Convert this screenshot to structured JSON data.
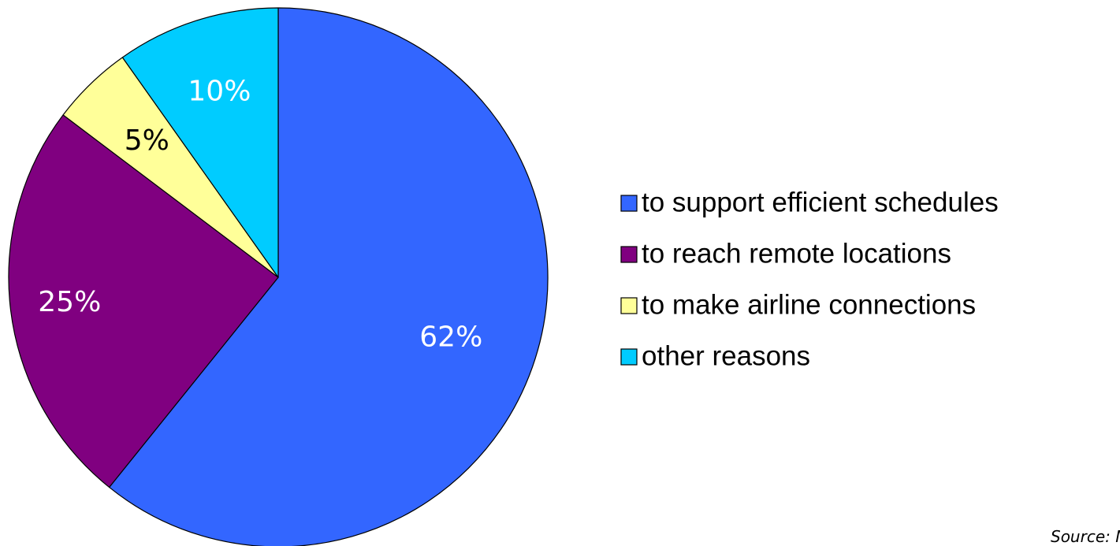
{
  "chart_data": {
    "type": "pie",
    "title": "",
    "slices": [
      {
        "label": "to support efficient schedules",
        "value": 62,
        "value_label": "62%",
        "color": "#3366ff",
        "label_color": "#ffffff"
      },
      {
        "label": "to reach remote locations",
        "value": 25,
        "value_label": "25%",
        "color": "#800080",
        "label_color": "#ffffff"
      },
      {
        "label": "to make airline connections",
        "value": 5,
        "value_label": "5%",
        "color": "#ffff99",
        "label_color": "#000000"
      },
      {
        "label": "other reasons",
        "value": 10,
        "value_label": "10%",
        "color": "#00ccff",
        "label_color": "#ffffff"
      }
    ],
    "legend_position": "right",
    "source_note": "Source:  N"
  }
}
